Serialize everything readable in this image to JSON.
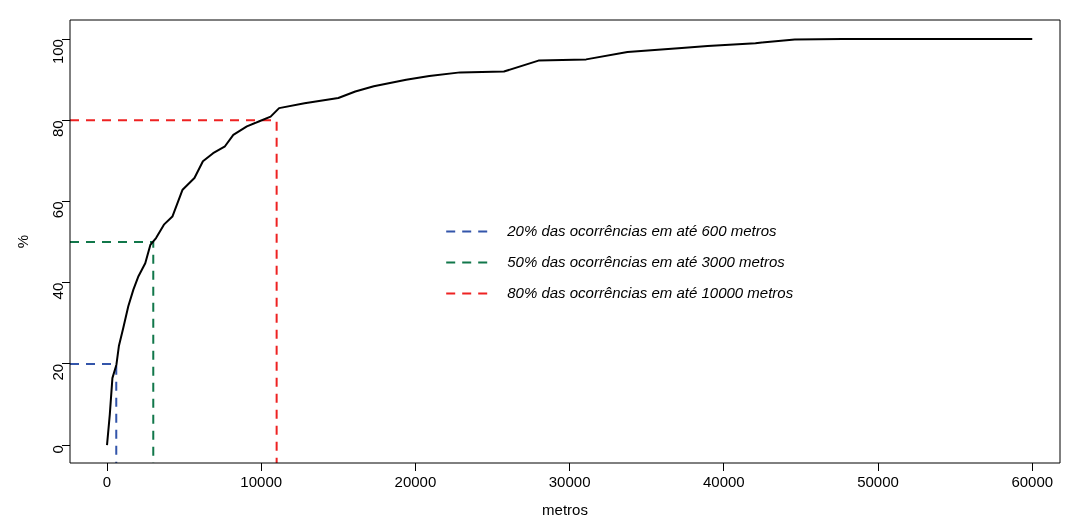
{
  "chart_data": {
    "type": "line",
    "xlabel": "metros",
    "ylabel": "%",
    "xlim": [
      -2400,
      61800
    ],
    "ylim": [
      -4.4,
      104.7
    ],
    "xticks": [
      0,
      10000,
      20000,
      30000,
      40000,
      50000,
      60000
    ],
    "yticks": [
      0,
      20,
      40,
      60,
      80,
      100
    ],
    "grid": false,
    "legend": "right",
    "marker": "none",
    "series": [
      {
        "type": "line",
        "color": "#000000",
        "line_style": "solid",
        "x": [
          0,
          180,
          350,
          610,
          770,
          1050,
          1380,
          1710,
          2040,
          2480,
          2810,
          3180,
          3690,
          4240,
          4900,
          5670,
          6220,
          6880,
          7650,
          8190,
          9070,
          9840,
          10610,
          11160,
          12810,
          15000,
          16100,
          17300,
          19400,
          20900,
          22900,
          25740,
          27980,
          31070,
          33750,
          37270,
          38950,
          42050,
          44600,
          47690,
          60000
        ],
        "values": [
          0,
          7.5,
          16.5,
          19.8,
          24.4,
          28.8,
          34.2,
          38.3,
          41.6,
          44.8,
          49.3,
          51,
          54.3,
          56.3,
          62.9,
          65.8,
          69.9,
          71.9,
          73.6,
          76.4,
          78.5,
          79.7,
          80.9,
          83,
          84.2,
          85.5,
          87.1,
          88.4,
          90,
          90.9,
          91.8,
          92,
          94.7,
          95,
          96.8,
          97.8,
          98.3,
          99,
          99.9,
          100,
          100
        ]
      },
      {
        "type": "line",
        "name": "20% das ocorrências em até 600 metros",
        "color": "#3355aa",
        "line_style": "dashed",
        "x": [
          -2400,
          600,
          600
        ],
        "values": [
          20,
          20,
          -4.4
        ]
      },
      {
        "type": "line",
        "name": "50% das ocorrências em até 3000 metros",
        "color": "#11774a",
        "line_style": "dashed",
        "x": [
          -2400,
          3000,
          3000
        ],
        "values": [
          50,
          50,
          -4.4
        ]
      },
      {
        "type": "line",
        "name": "80% das ocorrências em até 10000 metros",
        "color": "#ee2222",
        "line_style": "dashed",
        "x": [
          -2400,
          11000,
          11000
        ],
        "values": [
          80,
          80,
          -4.4
        ]
      }
    ]
  }
}
